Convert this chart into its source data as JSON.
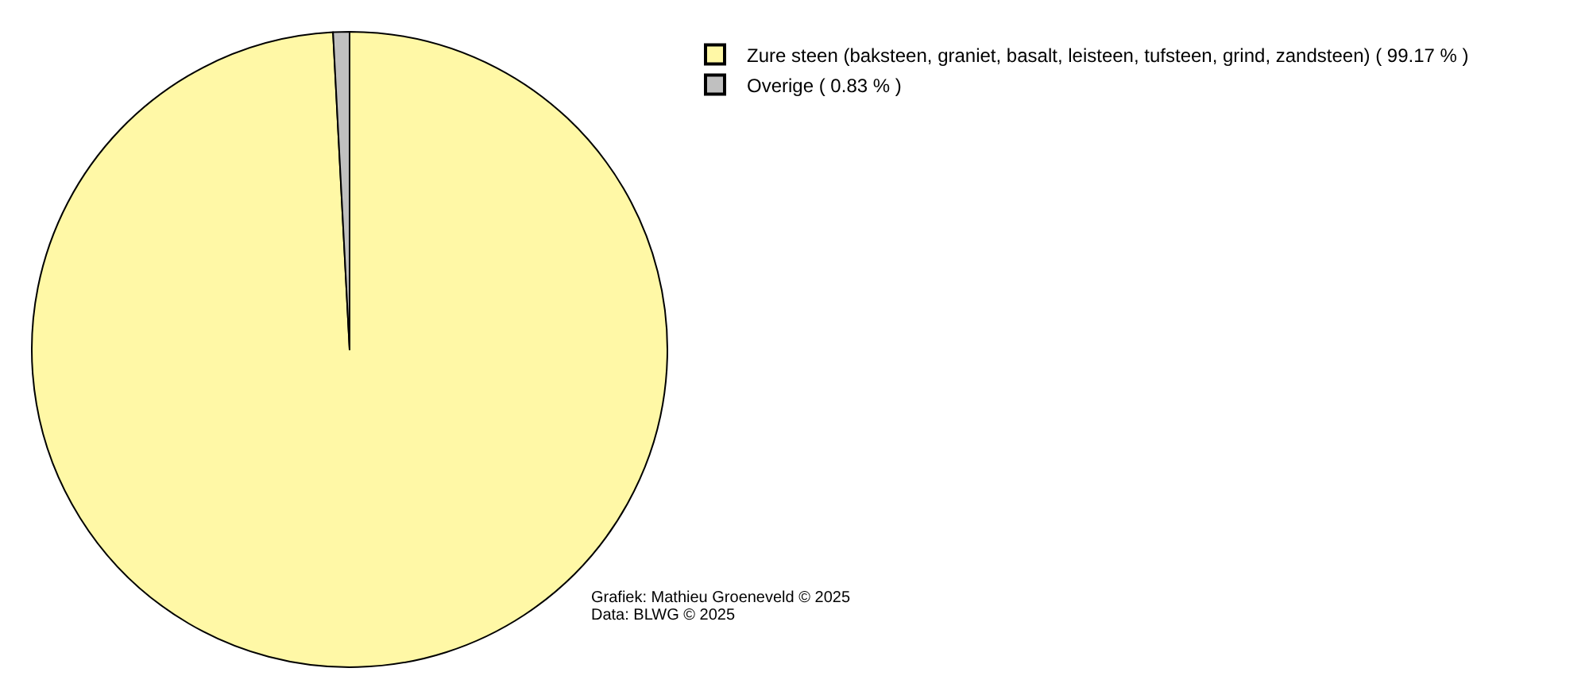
{
  "chart_data": {
    "type": "pie",
    "categories": [
      "Zure steen (baksteen, graniet, basalt, leisteen, tufsteen, grind, zandsteen) ( 99.17 % )",
      "Overige ( 0.83 % )"
    ],
    "values": [
      99.17,
      0.83
    ],
    "colors": [
      "#fff8a6",
      "#c0c0c0"
    ],
    "legend": "top right",
    "annotations": [
      "Grafiek: Mathieu Groeneveld © 2025",
      "Data: BLWG © 2025"
    ]
  }
}
